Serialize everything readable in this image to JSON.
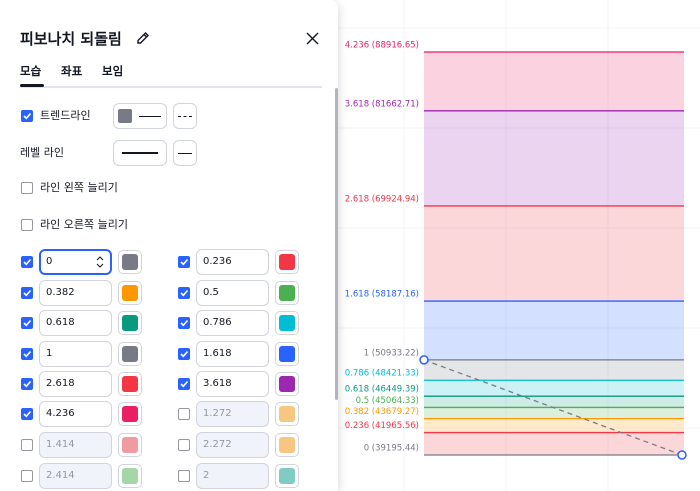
{
  "dialog": {
    "title": "피보나치 되돌림",
    "tabs": [
      "모습",
      "좌표",
      "보임"
    ],
    "trendline": {
      "label": "트렌드라인",
      "checked": true,
      "color": "#787b86"
    },
    "level_line": {
      "label": "레벨 라인"
    },
    "extend_left": {
      "label": "라인 왼쪽 늘리기",
      "checked": false
    },
    "extend_right": {
      "label": "라인 오른쪽 늘리기",
      "checked": false
    },
    "levels": [
      {
        "value": "0",
        "checked": true,
        "color": "#787b86"
      },
      {
        "value": "0.236",
        "checked": true,
        "color": "#f23645"
      },
      {
        "value": "0.382",
        "checked": true,
        "color": "#ff9800"
      },
      {
        "value": "0.5",
        "checked": true,
        "color": "#4caf50"
      },
      {
        "value": "0.618",
        "checked": true,
        "color": "#089981"
      },
      {
        "value": "0.786",
        "checked": true,
        "color": "#00bcd4"
      },
      {
        "value": "1",
        "checked": true,
        "color": "#787b86"
      },
      {
        "value": "1.618",
        "checked": true,
        "color": "#2962ff"
      },
      {
        "value": "2.618",
        "checked": true,
        "color": "#f23645"
      },
      {
        "value": "3.618",
        "checked": true,
        "color": "#9c27b0"
      },
      {
        "value": "4.236",
        "checked": true,
        "color": "#e91e63"
      },
      {
        "value": "1.272",
        "checked": false,
        "color": "#f7c680"
      },
      {
        "value": "1.414",
        "checked": false,
        "color": "#f09aa2"
      },
      {
        "value": "2.272",
        "checked": false,
        "color": "#f7c680"
      },
      {
        "value": "2.414",
        "checked": false,
        "color": "#a5d6a7"
      },
      {
        "value": "2",
        "checked": false,
        "color": "#80cbc4"
      }
    ]
  },
  "chart": {
    "levels": [
      {
        "label": "4.236 (88916.65)",
        "price": 88916.65,
        "color": "#e91e63"
      },
      {
        "label": "3.618 (81662.71)",
        "price": 81662.71,
        "color": "#9c27b0"
      },
      {
        "label": "2.618 (69924.94)",
        "price": 69924.94,
        "color": "#f23645"
      },
      {
        "label": "1.618 (58187.16)",
        "price": 58187.16,
        "color": "#2962ff"
      },
      {
        "label": "1 (50933.22)",
        "price": 50933.22,
        "color": "#787b86"
      },
      {
        "label": "0.786 (48421.33)",
        "price": 48421.33,
        "color": "#00bcd4"
      },
      {
        "label": "0.618 (46449.39)",
        "price": 46449.39,
        "color": "#089981"
      },
      {
        "label": "0.5 (45064.33)",
        "price": 45064.33,
        "color": "#4caf50"
      },
      {
        "label": "0.382 (43679.27)",
        "price": 43679.27,
        "color": "#ff9800"
      },
      {
        "label": "0.236 (41965.56)",
        "price": 41965.56,
        "color": "#f23645"
      },
      {
        "label": "0 (39195.44)",
        "price": 39195.44,
        "color": "#787b86"
      }
    ]
  }
}
